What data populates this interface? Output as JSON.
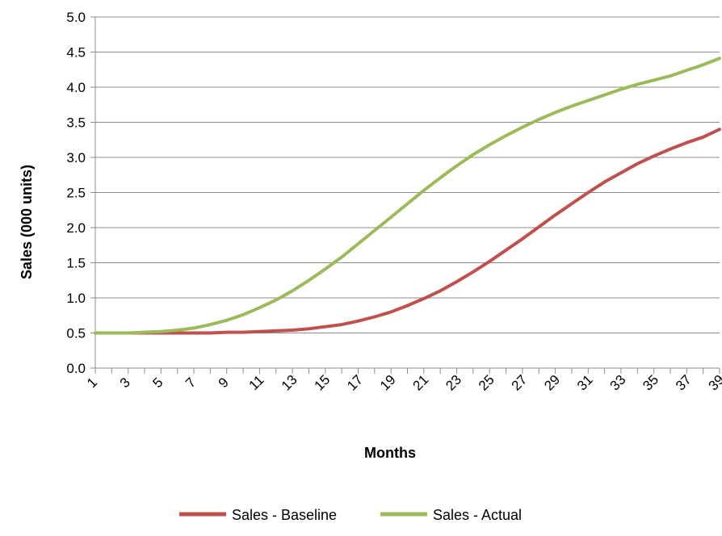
{
  "chart_data": {
    "type": "line",
    "xlabel": "Months",
    "ylabel": "Sales (000 units)",
    "x": [
      1,
      2,
      3,
      4,
      5,
      6,
      7,
      8,
      9,
      10,
      11,
      12,
      13,
      14,
      15,
      16,
      17,
      18,
      19,
      20,
      21,
      22,
      23,
      24,
      25,
      26,
      27,
      28,
      29,
      30,
      31,
      32,
      33,
      34,
      35,
      36,
      37,
      38,
      39
    ],
    "x_tick_labels": [
      "1",
      "3",
      "5",
      "7",
      "9",
      "11",
      "13",
      "15",
      "17",
      "19",
      "21",
      "23",
      "25",
      "27",
      "29",
      "31",
      "33",
      "35",
      "37",
      "39"
    ],
    "ylim": [
      0,
      5.0
    ],
    "y_ticks": [
      "0.0",
      "0.5",
      "1.0",
      "1.5",
      "2.0",
      "2.5",
      "3.0",
      "3.5",
      "4.0",
      "4.5",
      "5.0"
    ],
    "grid": "horizontal",
    "legend_position": "bottom",
    "series": [
      {
        "name": "Sales - Baseline",
        "color": "#c0504d",
        "values": [
          0.5,
          0.5,
          0.5,
          0.5,
          0.5,
          0.5,
          0.5,
          0.5,
          0.51,
          0.51,
          0.52,
          0.53,
          0.54,
          0.56,
          0.59,
          0.62,
          0.67,
          0.73,
          0.8,
          0.89,
          0.99,
          1.1,
          1.23,
          1.37,
          1.52,
          1.68,
          1.84,
          2.01,
          2.18,
          2.34,
          2.5,
          2.65,
          2.78,
          2.91,
          3.02,
          3.12,
          3.21,
          3.29,
          3.4
        ]
      },
      {
        "name": "Sales - Actual",
        "color": "#9bbb59",
        "values": [
          0.5,
          0.5,
          0.5,
          0.51,
          0.52,
          0.54,
          0.57,
          0.62,
          0.68,
          0.76,
          0.86,
          0.97,
          1.1,
          1.25,
          1.41,
          1.58,
          1.77,
          1.96,
          2.15,
          2.34,
          2.53,
          2.71,
          2.88,
          3.04,
          3.18,
          3.31,
          3.43,
          3.54,
          3.64,
          3.73,
          3.81,
          3.89,
          3.97,
          4.04,
          4.1,
          4.16,
          4.24,
          4.32,
          4.41
        ]
      }
    ]
  }
}
